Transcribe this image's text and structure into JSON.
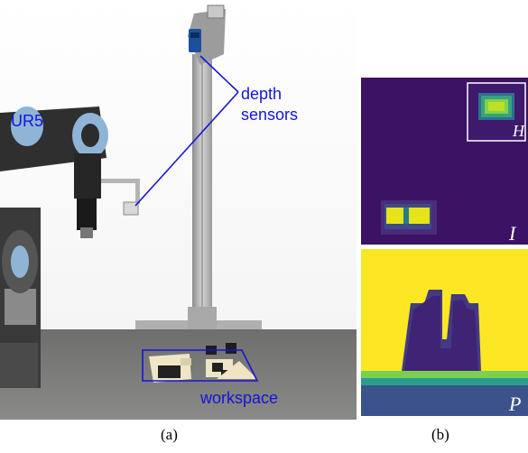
{
  "figure": {
    "panel_a": {
      "labels": {
        "robot": "UR5",
        "sensors_line1": "depth",
        "sensors_line2": "sensors",
        "workspace": "workspace"
      },
      "caption": "(a)"
    },
    "panel_b": {
      "top_image": {
        "inset_label": "H",
        "corner_label": "I"
      },
      "bottom_image": {
        "corner_label": "P"
      },
      "caption": "(b)"
    }
  },
  "colors": {
    "annotation": "#1515d6",
    "viridis_dark": "#440154",
    "viridis_bg": "#3b1264",
    "viridis_yellow": "#fde725"
  }
}
